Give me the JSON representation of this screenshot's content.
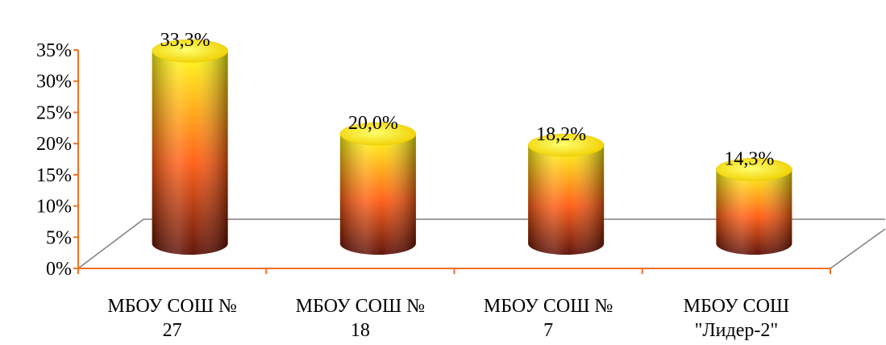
{
  "chart_data": {
    "type": "bar",
    "categories": [
      [
        "МБОУ СОШ №",
        "27"
      ],
      [
        "МБОУ СОШ №",
        "18"
      ],
      [
        "МБОУ СОШ №",
        "7"
      ],
      [
        "МБОУ СОШ",
        "\"Лидер-2\""
      ]
    ],
    "values": [
      33.3,
      20.0,
      18.2,
      14.3
    ],
    "data_labels": [
      "33,3%",
      "20,0%",
      "18,2%",
      "14,3%"
    ],
    "y_ticks": [
      "0%",
      "5%",
      "10%",
      "15%",
      "20%",
      "25%",
      "30%",
      "35%"
    ],
    "ylim": [
      0,
      35
    ],
    "title": "",
    "xlabel": "",
    "ylabel": "",
    "grid": false,
    "legend": "none",
    "colors": {
      "axis": "#f07020",
      "floor": "#808080",
      "bar_top": "#ffff10",
      "bar_mid": "#ff5a10",
      "bar_bottom": "#5a0a00"
    }
  }
}
